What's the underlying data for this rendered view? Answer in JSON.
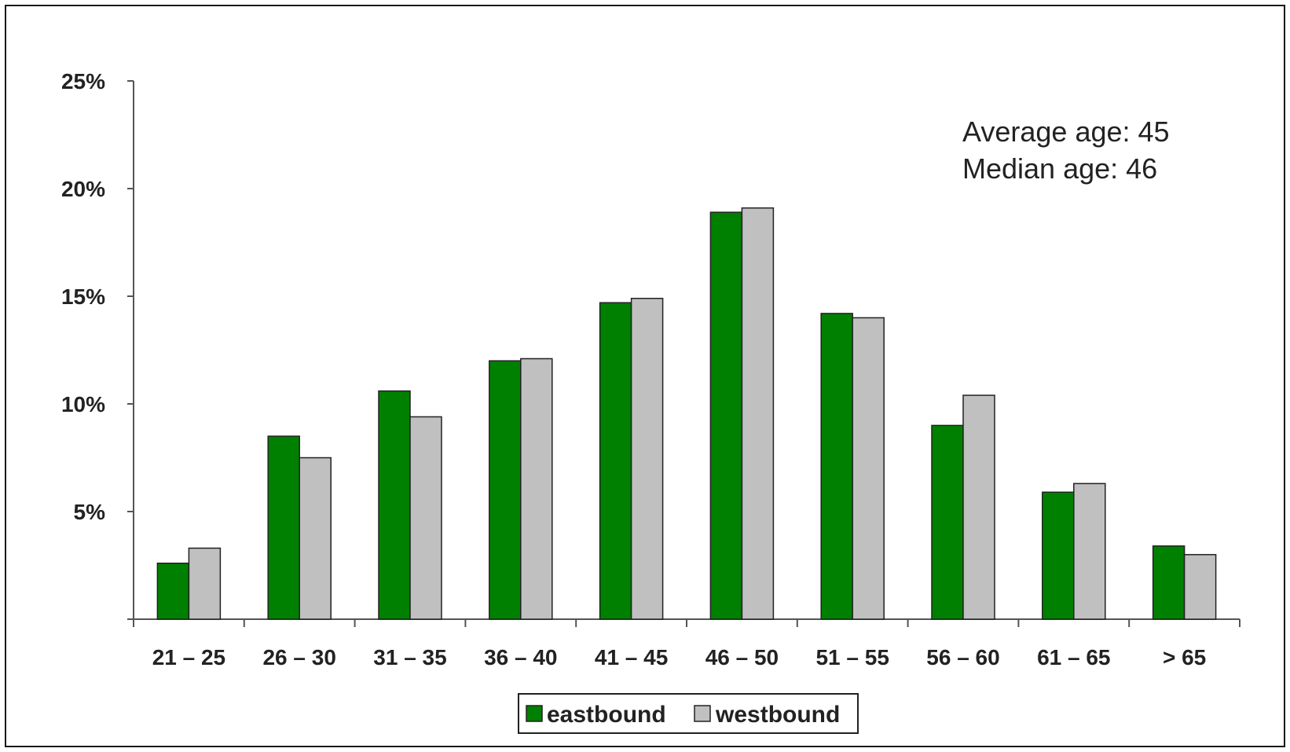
{
  "chart_data": {
    "type": "bar",
    "categories": [
      "21 – 25",
      "26 – 30",
      "31 – 35",
      "36 – 40",
      "41 – 45",
      "46 – 50",
      "51 – 55",
      "56 – 60",
      "61 – 65",
      "> 65"
    ],
    "series": [
      {
        "name": "eastbound",
        "color": "#008000",
        "values": [
          2.6,
          8.5,
          10.6,
          12.0,
          14.7,
          18.9,
          14.2,
          9.0,
          5.9,
          3.4
        ]
      },
      {
        "name": "westbound",
        "color": "#c0c0c0",
        "values": [
          3.3,
          7.5,
          9.4,
          12.1,
          14.9,
          19.1,
          14.0,
          10.4,
          6.3,
          3.0
        ]
      }
    ],
    "ylim": [
      0,
      25
    ],
    "yticks": [
      {
        "value": 5,
        "label": "5%"
      },
      {
        "value": 10,
        "label": "10%"
      },
      {
        "value": 15,
        "label": "15%"
      },
      {
        "value": 20,
        "label": "20%"
      },
      {
        "value": 25,
        "label": "25%"
      }
    ],
    "title": "",
    "xlabel": "",
    "ylabel": "",
    "grid": false,
    "legend_position": "bottom-center",
    "annotations": [
      "Average age: 45",
      "Median age: 46"
    ]
  }
}
